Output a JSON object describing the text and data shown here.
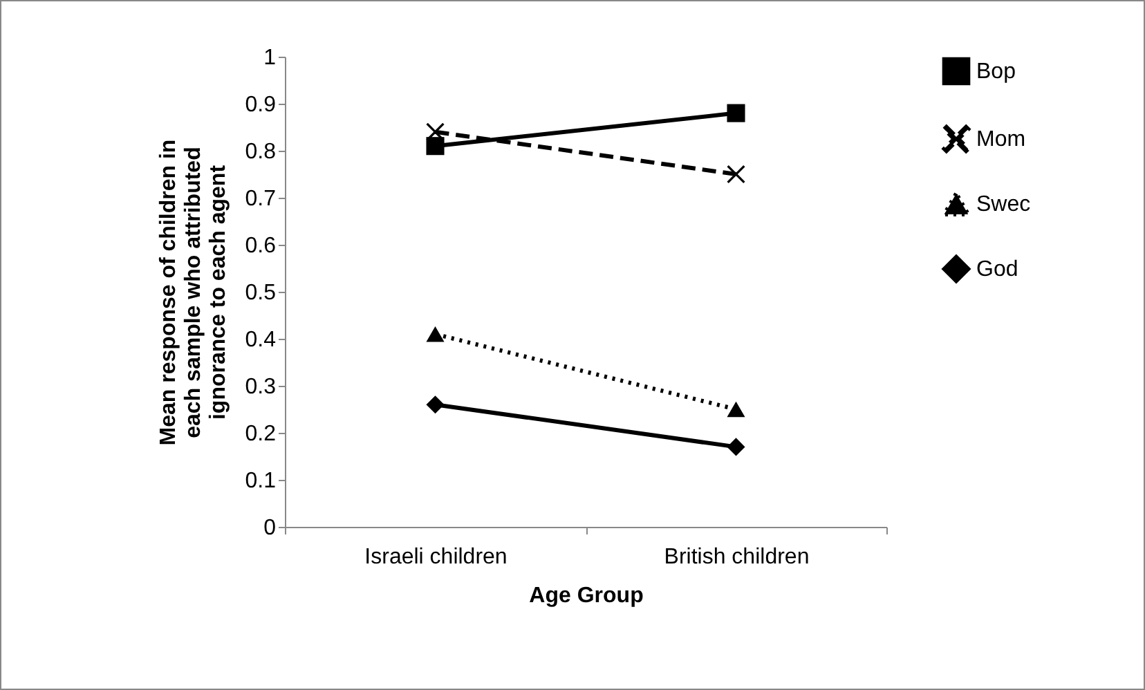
{
  "chart_data": {
    "type": "line",
    "xlabel": "Age Group",
    "ylabel": "Mean response of children in each sample who attributed ignorance to each agent",
    "categories": [
      "Israeli children",
      "British children"
    ],
    "series": [
      {
        "name": "Bop",
        "color": "#000000",
        "marker": "square",
        "line_style": "solid",
        "values": [
          0.81,
          0.88
        ]
      },
      {
        "name": "Mom",
        "color": "#000000",
        "marker": "cross",
        "line_style": "dashed",
        "values": [
          0.84,
          0.75
        ]
      },
      {
        "name": "Swec",
        "color": "#000000",
        "marker": "triangle",
        "line_style": "dotted",
        "values": [
          0.41,
          0.25
        ]
      },
      {
        "name": "God",
        "color": "#000000",
        "marker": "diamond",
        "line_style": "solid",
        "values": [
          0.26,
          0.17
        ]
      }
    ],
    "ylim": [
      0,
      1
    ],
    "yticks": [
      0,
      0.1,
      0.2,
      0.3,
      0.4,
      0.5,
      0.6,
      0.7,
      0.8,
      0.9,
      1
    ],
    "grid": false,
    "legend": "right"
  }
}
